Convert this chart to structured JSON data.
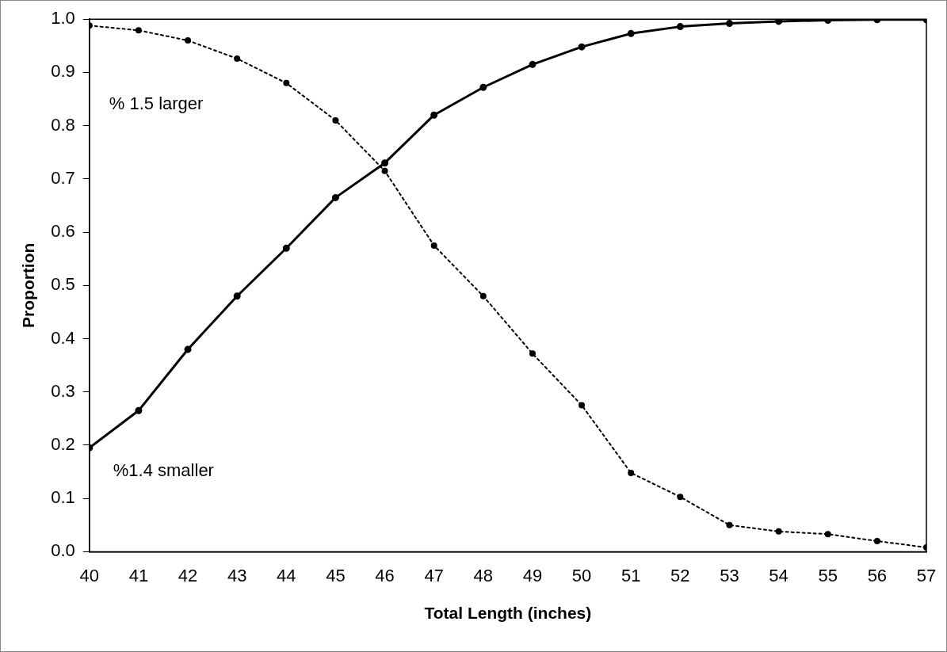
{
  "chart_data": {
    "type": "line",
    "xlabel": "Total Length (inches)",
    "ylabel": "Proportion",
    "x": [
      40,
      41,
      42,
      43,
      44,
      45,
      46,
      47,
      48,
      49,
      50,
      51,
      52,
      53,
      54,
      55,
      56,
      57
    ],
    "series": [
      {
        "name": "% 1.5 larger",
        "color": "#000000",
        "line_style": "dotted",
        "values": [
          0.988,
          0.979,
          0.96,
          0.926,
          0.88,
          0.81,
          0.715,
          0.575,
          0.48,
          0.372,
          0.275,
          0.148,
          0.103,
          0.05,
          0.038,
          0.033,
          0.02,
          0.008
        ]
      },
      {
        "name": "%1.4 smaller",
        "color": "#000000",
        "line_style": "solid",
        "values": [
          0.195,
          0.265,
          0.38,
          0.48,
          0.57,
          0.665,
          0.73,
          0.82,
          0.872,
          0.915,
          0.948,
          0.973,
          0.986,
          0.992,
          0.996,
          0.998,
          0.999,
          0.999
        ]
      }
    ],
    "xlim": [
      40,
      57
    ],
    "xticks": [
      40,
      41,
      42,
      43,
      44,
      45,
      46,
      47,
      48,
      49,
      50,
      51,
      52,
      53,
      54,
      55,
      56,
      57
    ],
    "ylim": [
      0,
      1
    ],
    "yticks": [
      {
        "value": 0,
        "label": "0.0"
      },
      {
        "value": 0.1,
        "label": "0.1"
      },
      {
        "value": 0.2,
        "label": "0.2"
      },
      {
        "value": 0.3,
        "label": "0.3"
      },
      {
        "value": 0.4,
        "label": "0.4"
      },
      {
        "value": 0.5,
        "label": "0.5"
      },
      {
        "value": 0.6,
        "label": "0.6"
      },
      {
        "value": 0.7,
        "label": "0.7"
      },
      {
        "value": 0.8,
        "label": "0.8"
      },
      {
        "value": 0.9,
        "label": "0.9"
      },
      {
        "value": 1,
        "label": "1.0"
      }
    ],
    "grid": false,
    "legend": false,
    "marker": "circle"
  }
}
